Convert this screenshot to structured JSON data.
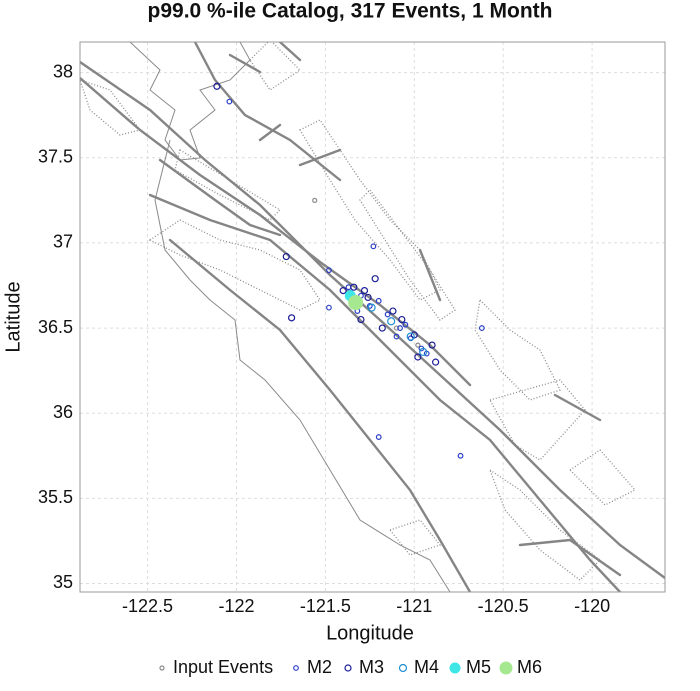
{
  "chart_data": {
    "type": "scatter",
    "title": "p99.0 %-ile Catalog, 317 Events, 1 Month",
    "x_label": "Longitude",
    "y_label": "Latitude",
    "xlim": [
      -122.88,
      -119.59
    ],
    "ylim": [
      34.95,
      38.18
    ],
    "xticks": [
      -122.5,
      -122,
      -121.5,
      -121,
      -120.5,
      -120
    ],
    "yticks": [
      35,
      35.5,
      36,
      36.5,
      37,
      37.5,
      38
    ],
    "grid": true,
    "series": [
      {
        "name": "Input Events",
        "color": "#8a8a8a",
        "marker": "open",
        "x": [
          -121.56,
          -121.3,
          -121.1,
          -120.98
        ],
        "y": [
          37.25,
          36.64,
          36.5,
          36.4
        ]
      },
      {
        "name": "M2",
        "color": "#2a3fc8",
        "marker": "open",
        "x": [
          -122.04,
          -121.23,
          -121.48,
          -121.48,
          -121.2,
          -120.74,
          -120.62,
          -121.37,
          -121.3,
          -121.25,
          -121.15,
          -121.08,
          -121.02,
          -120.96,
          -121.1,
          -120.93,
          -121.32,
          -121.2,
          -121.05
        ],
        "y": [
          37.83,
          36.98,
          36.84,
          36.62,
          35.86,
          35.75,
          36.5,
          36.74,
          36.69,
          36.63,
          36.58,
          36.5,
          36.44,
          36.38,
          36.45,
          36.35,
          36.6,
          36.66,
          36.52
        ]
      },
      {
        "name": "M3",
        "color": "#1c1c96",
        "marker": "open",
        "x": [
          -122.11,
          -121.72,
          -121.69,
          -121.22,
          -121.4,
          -121.34,
          -121.28,
          -121.3,
          -121.12,
          -121.07,
          -121.0,
          -120.9,
          -120.88,
          -121.18,
          -120.98,
          -121.26
        ],
        "y": [
          37.92,
          36.92,
          36.56,
          36.79,
          36.72,
          36.74,
          36.72,
          36.55,
          36.6,
          36.55,
          36.46,
          36.4,
          36.3,
          36.5,
          36.33,
          36.68
        ]
      },
      {
        "name": "M4",
        "color": "#1e8fcf",
        "marker": "open",
        "x": [
          -121.36,
          -121.24,
          -121.13,
          -121.02,
          -120.95
        ],
        "y": [
          36.7,
          36.62,
          36.54,
          36.45,
          36.36
        ]
      },
      {
        "name": "M5",
        "color": "#3ee6e6",
        "marker": "filled",
        "x": [
          -121.36
        ],
        "y": [
          36.69
        ]
      },
      {
        "name": "M6",
        "color": "#a6e890",
        "marker": "filled",
        "x": [
          -121.33
        ],
        "y": [
          36.65
        ]
      }
    ]
  }
}
